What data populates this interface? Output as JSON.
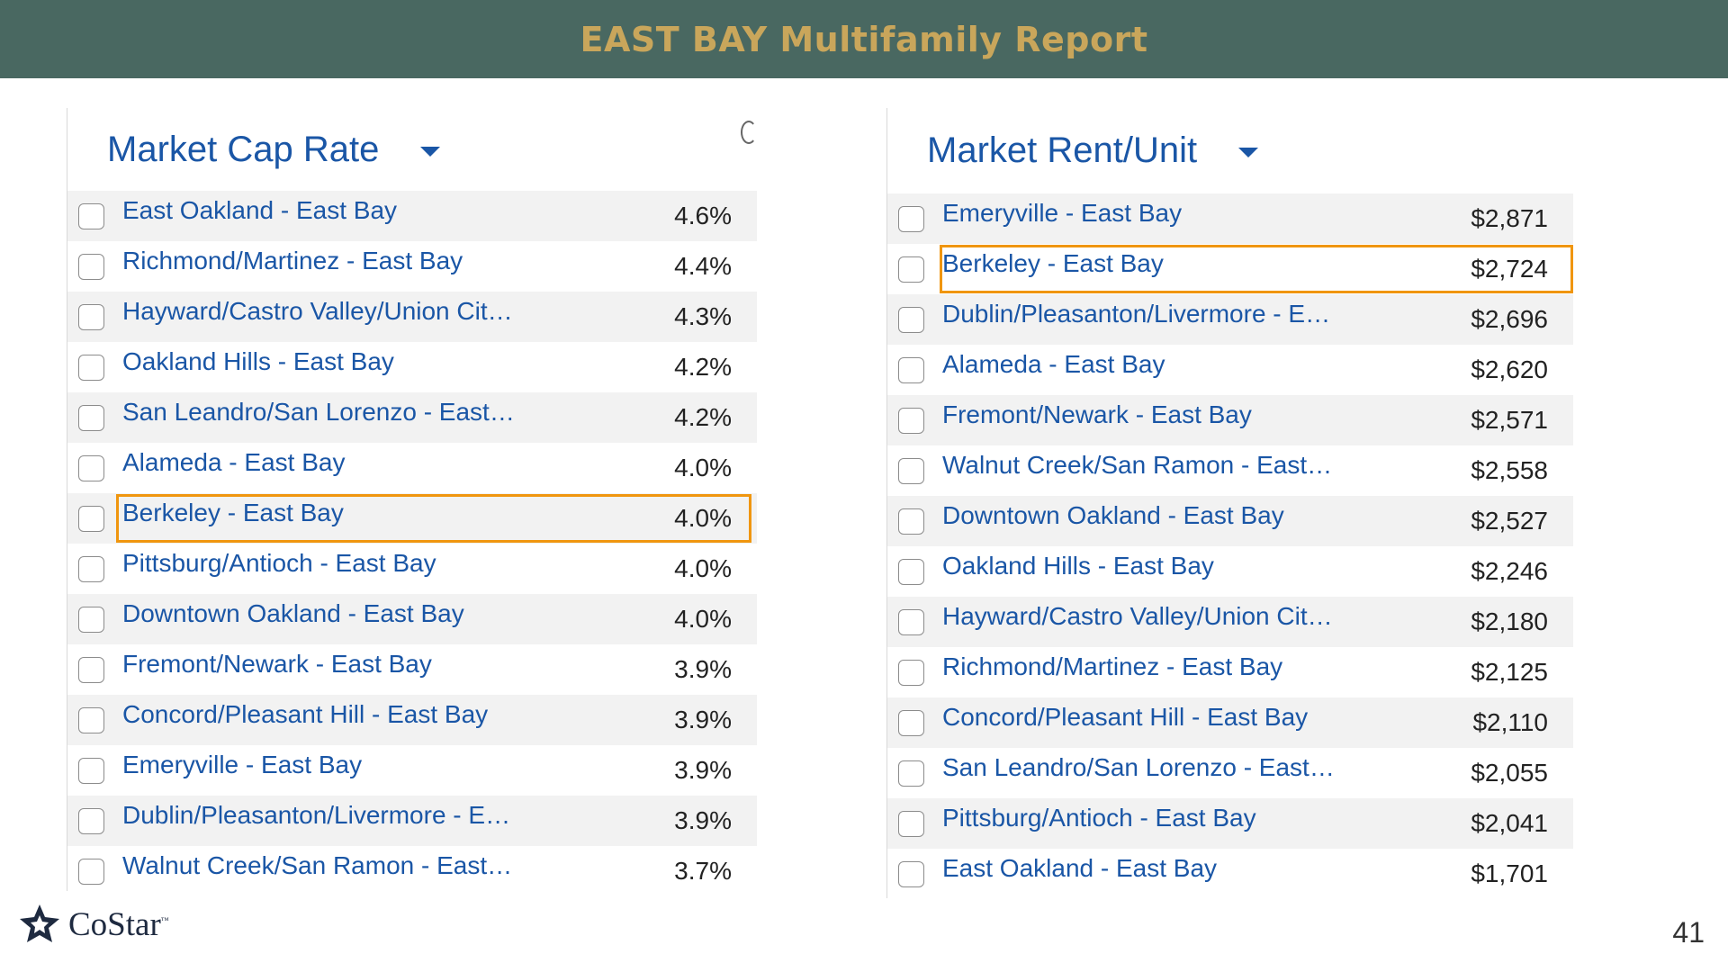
{
  "banner": {
    "title": "EAST BAY Multifamily Report"
  },
  "cap_rate": {
    "title": "Market Cap Rate",
    "highlighted": "Berkeley - East Bay",
    "rows": [
      {
        "name": "East Oakland - East Bay",
        "value": "4.6%"
      },
      {
        "name": "Richmond/Martinez - East Bay",
        "value": "4.4%"
      },
      {
        "name": "Hayward/Castro Valley/Union Cit…",
        "value": "4.3%"
      },
      {
        "name": "Oakland Hills - East Bay",
        "value": "4.2%"
      },
      {
        "name": "San Leandro/San Lorenzo - East…",
        "value": "4.2%"
      },
      {
        "name": "Alameda - East Bay",
        "value": "4.0%"
      },
      {
        "name": "Berkeley - East Bay",
        "value": "4.0%"
      },
      {
        "name": "Pittsburg/Antioch - East Bay",
        "value": "4.0%"
      },
      {
        "name": "Downtown Oakland - East Bay",
        "value": "4.0%"
      },
      {
        "name": "Fremont/Newark - East Bay",
        "value": "3.9%"
      },
      {
        "name": "Concord/Pleasant Hill - East Bay",
        "value": "3.9%"
      },
      {
        "name": "Emeryville - East Bay",
        "value": "3.9%"
      },
      {
        "name": "Dublin/Pleasanton/Livermore - E…",
        "value": "3.9%"
      },
      {
        "name": "Walnut Creek/San Ramon - East…",
        "value": "3.7%"
      }
    ]
  },
  "rent_unit": {
    "title": "Market Rent/Unit",
    "highlighted": "Berkeley - East Bay",
    "rows": [
      {
        "name": "Emeryville - East Bay",
        "value": "$2,871"
      },
      {
        "name": "Berkeley - East Bay",
        "value": "$2,724"
      },
      {
        "name": "Dublin/Pleasanton/Livermore - E…",
        "value": "$2,696"
      },
      {
        "name": "Alameda - East Bay",
        "value": "$2,620"
      },
      {
        "name": "Fremont/Newark - East Bay",
        "value": "$2,571"
      },
      {
        "name": "Walnut Creek/San Ramon - East…",
        "value": "$2,558"
      },
      {
        "name": "Downtown Oakland - East Bay",
        "value": "$2,527"
      },
      {
        "name": "Oakland Hills - East Bay",
        "value": "$2,246"
      },
      {
        "name": "Hayward/Castro Valley/Union Cit…",
        "value": "$2,180"
      },
      {
        "name": "Richmond/Martinez - East Bay",
        "value": "$2,125"
      },
      {
        "name": "Concord/Pleasant Hill - East Bay",
        "value": "$2,110"
      },
      {
        "name": "San Leandro/San Lorenzo - East…",
        "value": "$2,055"
      },
      {
        "name": "Pittsburg/Antioch - East Bay",
        "value": "$2,041"
      },
      {
        "name": "East Oakland - East Bay",
        "value": "$1,701"
      }
    ]
  },
  "footer": {
    "logo_text": "CoStar",
    "logo_tm": "™",
    "page_number": "41"
  },
  "colors": {
    "banner": "#496861",
    "banner_text": "#c9a65b",
    "link": "#1a56a6",
    "highlight": "#f0960f"
  },
  "icons": {
    "dropdown": "caret-down-icon",
    "refresh": "refresh-icon",
    "logo": "costar-star-icon"
  }
}
